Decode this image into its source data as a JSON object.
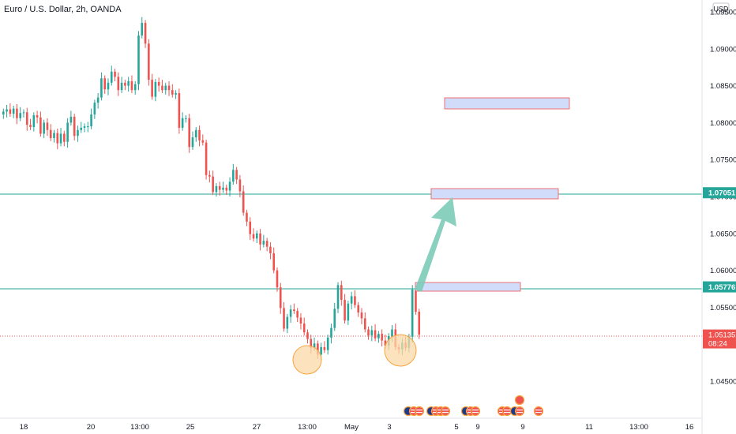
{
  "header": {
    "symbol_title": "Euro / U.S. Dollar, 2h, OANDA"
  },
  "price_scale": {
    "currency": "USD",
    "ticks": [
      "1.09500",
      "1.09000",
      "1.08500",
      "1.08000",
      "1.07500",
      "1.07000",
      "1.06500",
      "1.06000",
      "1.05500",
      "1.05000",
      "1.04500"
    ],
    "badges": [
      {
        "value": "1.07051",
        "color": "#26a69a"
      },
      {
        "value": "1.05776",
        "color": "#26a69a"
      }
    ],
    "current": {
      "value": "1.05135",
      "countdown": "08:24",
      "color": "#ef5350"
    }
  },
  "time_axis": {
    "ticks": [
      "18",
      "20",
      "13:00",
      "25",
      "27",
      "13:00",
      "May",
      "3",
      "5",
      "9",
      "9",
      "11",
      "13:00",
      "16"
    ]
  },
  "colors": {
    "up": "#26a69a",
    "down": "#ef5350",
    "arrow": "#7ccbb8",
    "zone_fill": "#d1dcfb",
    "zone_border": "#ef5350",
    "circle_fill": "#fbd9a7",
    "circle_border": "#f7a440"
  },
  "chart_data": {
    "type": "candlestick",
    "title": "Euro / U.S. Dollar, 2h, OANDA",
    "ylim": [
      1.041,
      1.0975
    ],
    "series": [
      {
        "values": [
          1.0815,
          1.0818,
          1.0812,
          1.0819,
          1.0806,
          1.0813,
          1.0814,
          1.0797,
          1.0794,
          1.081,
          1.0807,
          1.0785,
          1.08,
          1.079,
          1.0779,
          1.0786,
          1.0772,
          1.0785,
          1.0774,
          1.08,
          1.0808,
          1.0782,
          1.079,
          1.0793,
          1.0795,
          1.0795,
          1.0811,
          1.0827,
          1.0834,
          1.086,
          1.0845,
          1.0854,
          1.0869,
          1.0862,
          1.0844,
          1.0854,
          1.085,
          1.0856,
          1.0844,
          1.0852,
          1.0918,
          1.0935,
          1.0907,
          1.0858,
          1.0835,
          1.0855,
          1.085,
          1.0844,
          1.085,
          1.0844,
          1.0838,
          1.084,
          1.0793,
          1.0806,
          1.0806,
          1.0767,
          1.078,
          1.079,
          1.0776,
          1.0773,
          1.0729,
          1.0727,
          1.0706,
          1.0714,
          1.0709,
          1.0712,
          1.0708,
          1.072,
          1.0736,
          1.0723,
          1.0707,
          1.0678,
          1.0666,
          1.0649,
          1.0643,
          1.065,
          1.0635,
          1.064,
          1.0632,
          1.0623,
          1.06,
          1.0577,
          1.0549,
          1.0521,
          1.0537,
          1.0547,
          1.0545,
          1.0536,
          1.0528,
          1.0516,
          1.0507,
          1.0495,
          1.0501,
          1.0486,
          1.0496,
          1.0492,
          1.0509,
          1.0522,
          1.0548,
          1.058,
          1.056,
          1.0532,
          1.0555,
          1.0565,
          1.0553,
          1.0543,
          1.0535,
          1.052,
          1.0512,
          1.0519,
          1.0508,
          1.0514,
          1.0505,
          1.0498,
          1.0511,
          1.052,
          1.0496,
          1.0493,
          1.0502,
          1.0495,
          1.051,
          1.0574,
          1.0544,
          1.0513
        ]
      }
    ]
  }
}
